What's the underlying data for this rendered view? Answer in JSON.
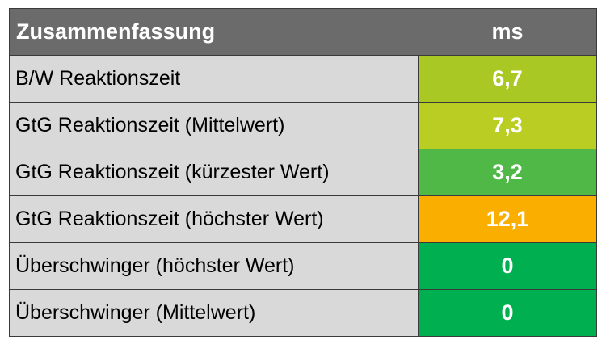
{
  "chart_data": {
    "type": "table",
    "header": {
      "label": "Zusammenfassung",
      "unit": "ms"
    },
    "rows": [
      {
        "label": "B/W Reaktionszeit",
        "value": "6,7",
        "color": "#a9c824"
      },
      {
        "label": "GtG Reaktionszeit (Mittelwert)",
        "value": "7,3",
        "color": "#b9cd22"
      },
      {
        "label": "GtG Reaktionszeit (kürzester Wert)",
        "value": "3,2",
        "color": "#4fb847"
      },
      {
        "label": "GtG Reaktionszeit (höchster Wert)",
        "value": "12,1",
        "color": "#f9ae00"
      },
      {
        "label": "Überschwinger (höchster Wert)",
        "value": "0",
        "color": "#00af50"
      },
      {
        "label": "Überschwinger (Mittelwert)",
        "value": "0",
        "color": "#00af50"
      }
    ]
  },
  "colors": {
    "header_background": "#6b6b6b",
    "label_background": "#d9d9d9",
    "header_text": "#ffffff",
    "label_text": "#000000",
    "value_text": "#ffffff"
  }
}
